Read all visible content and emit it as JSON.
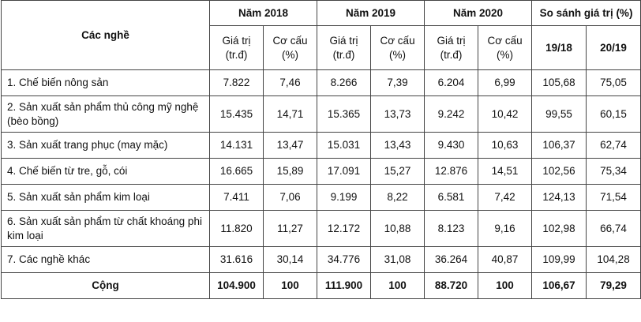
{
  "header": {
    "col_name": "Các nghề",
    "years": [
      "Năm 2018",
      "Năm 2019",
      "Năm 2020"
    ],
    "compare": "So sánh giá trị (%)",
    "sub_value": "Giá trị\n(tr.đ)",
    "sub_share": "Cơ cấu\n(%)",
    "cmp_cols": [
      "19/18",
      "20/19"
    ]
  },
  "rows": [
    {
      "name": "1. Chế biến nông sản",
      "v2018": "7.822",
      "s2018": "7,46",
      "v2019": "8.266",
      "s2019": "7,39",
      "v2020": "6.204",
      "s2020": "6,99",
      "c1918": "105,68",
      "c2019": "75,05"
    },
    {
      "name": "2. Sản xuất sản phẩm thủ công mỹ nghệ (bèo bồng)",
      "v2018": "15.435",
      "s2018": "14,71",
      "v2019": "15.365",
      "s2019": "13,73",
      "v2020": "9.242",
      "s2020": "10,42",
      "c1918": "99,55",
      "c2019": "60,15"
    },
    {
      "name": "3. Sản xuất trang phục (may mặc)",
      "v2018": "14.131",
      "s2018": "13,47",
      "v2019": "15.031",
      "s2019": "13,43",
      "v2020": "9.430",
      "s2020": "10,63",
      "c1918": "106,37",
      "c2019": "62,74"
    },
    {
      "name": "4. Chế biến từ tre, gỗ, cói",
      "v2018": "16.665",
      "s2018": "15,89",
      "v2019": "17.091",
      "s2019": "15,27",
      "v2020": "12.876",
      "s2020": "14,51",
      "c1918": "102,56",
      "c2019": "75,34"
    },
    {
      "name": "5. Sản xuất sản phẩm kim loại",
      "v2018": "7.411",
      "s2018": "7,06",
      "v2019": "9.199",
      "s2019": "8,22",
      "v2020": "6.581",
      "s2020": "7,42",
      "c1918": "124,13",
      "c2019": "71,54"
    },
    {
      "name": "6. Sản xuất sản phẩm từ chất khoáng phi kim loại",
      "v2018": "11.820",
      "s2018": "11,27",
      "v2019": "12.172",
      "s2019": "10,88",
      "v2020": "8.123",
      "s2020": "9,16",
      "c1918": "102,98",
      "c2019": "66,74"
    },
    {
      "name": "7. Các nghề khác",
      "v2018": "31.616",
      "s2018": "30,14",
      "v2019": "34.776",
      "s2019": "31,08",
      "v2020": "36.264",
      "s2020": "40,87",
      "c1918": "109,99",
      "c2019": "104,28"
    }
  ],
  "total": {
    "name": "Cộng",
    "v2018": "104.900",
    "s2018": "100",
    "v2019": "111.900",
    "s2019": "100",
    "v2020": "88.720",
    "s2020": "100",
    "c1918": "106,67",
    "c2019": "79,29"
  }
}
